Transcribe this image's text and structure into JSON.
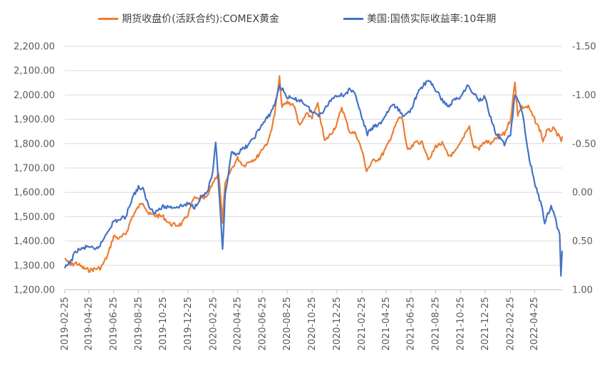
{
  "chart_data": {
    "type": "line",
    "title": "",
    "legend_position": "top",
    "grid": true,
    "colors": {
      "gold": "#ED7D31",
      "yield": "#4472C4",
      "grid": "#D9D9D9",
      "axis": "#BFBFBF",
      "text": "#595959"
    },
    "y_left": {
      "min": 1200,
      "max": 2200,
      "step": 100,
      "tick_labels": [
        "1,200.00",
        "1,300.00",
        "1,400.00",
        "1,500.00",
        "1,600.00",
        "1,700.00",
        "1,800.00",
        "1,900.00",
        "2,000.00",
        "2,100.00",
        "2,200.00"
      ]
    },
    "y_right": {
      "min": -1.5,
      "max": 1.0,
      "inverted": true,
      "tick_values": [
        -1.5,
        -1.0,
        -0.5,
        0.0,
        0.5,
        1.0
      ],
      "tick_labels": [
        "-1.50",
        "-1.00",
        "-0.50",
        "0.00",
        "0.50",
        "1.00"
      ]
    },
    "x_labels": [
      "2019-02-25",
      "2019-04-25",
      "2019-06-25",
      "2019-08-25",
      "2019-10-25",
      "2019-12-25",
      "2020-02-25",
      "2020-04-25",
      "2020-06-25",
      "2020-08-25",
      "2020-10-25",
      "2020-12-25",
      "2021-02-25",
      "2021-04-25",
      "2021-06-25",
      "2021-08-25",
      "2021-10-25",
      "2021-12-25",
      "2022-02-25",
      "2022-04-25"
    ],
    "series": [
      {
        "name": "期货收盘价(活跃合约):COMEX黄金",
        "axis": "left",
        "points": [
          [
            "2019-02-25",
            1330
          ],
          [
            "2019-03-10",
            1300
          ],
          [
            "2019-03-25",
            1310
          ],
          [
            "2019-04-10",
            1290
          ],
          [
            "2019-04-25",
            1280
          ],
          [
            "2019-05-10",
            1285
          ],
          [
            "2019-05-25",
            1290
          ],
          [
            "2019-06-10",
            1340
          ],
          [
            "2019-06-25",
            1420
          ],
          [
            "2019-07-10",
            1410
          ],
          [
            "2019-07-25",
            1430
          ],
          [
            "2019-08-10",
            1500
          ],
          [
            "2019-08-25",
            1540
          ],
          [
            "2019-09-05",
            1560
          ],
          [
            "2019-09-20",
            1510
          ],
          [
            "2019-10-05",
            1505
          ],
          [
            "2019-10-25",
            1500
          ],
          [
            "2019-11-10",
            1470
          ],
          [
            "2019-11-25",
            1465
          ],
          [
            "2019-12-10",
            1470
          ],
          [
            "2019-12-25",
            1510
          ],
          [
            "2020-01-08",
            1575
          ],
          [
            "2020-01-25",
            1570
          ],
          [
            "2020-02-10",
            1580
          ],
          [
            "2020-02-24",
            1640
          ],
          [
            "2020-03-09",
            1680
          ],
          [
            "2020-03-19",
            1480
          ],
          [
            "2020-03-25",
            1630
          ],
          [
            "2020-04-08",
            1690
          ],
          [
            "2020-04-25",
            1740
          ],
          [
            "2020-05-10",
            1710
          ],
          [
            "2020-05-25",
            1730
          ],
          [
            "2020-06-10",
            1740
          ],
          [
            "2020-06-25",
            1780
          ],
          [
            "2020-07-10",
            1810
          ],
          [
            "2020-07-25",
            1920
          ],
          [
            "2020-08-06",
            2070
          ],
          [
            "2020-08-12",
            1950
          ],
          [
            "2020-08-25",
            1970
          ],
          [
            "2020-09-10",
            1960
          ],
          [
            "2020-09-25",
            1870
          ],
          [
            "2020-10-10",
            1920
          ],
          [
            "2020-10-25",
            1910
          ],
          [
            "2020-11-08",
            1960
          ],
          [
            "2020-11-25",
            1810
          ],
          [
            "2020-12-10",
            1840
          ],
          [
            "2020-12-25",
            1880
          ],
          [
            "2021-01-06",
            1950
          ],
          [
            "2021-01-25",
            1850
          ],
          [
            "2021-02-10",
            1840
          ],
          [
            "2021-02-25",
            1770
          ],
          [
            "2021-03-08",
            1690
          ],
          [
            "2021-03-25",
            1730
          ],
          [
            "2021-04-10",
            1740
          ],
          [
            "2021-04-25",
            1780
          ],
          [
            "2021-05-10",
            1840
          ],
          [
            "2021-05-25",
            1900
          ],
          [
            "2021-06-03",
            1910
          ],
          [
            "2021-06-17",
            1770
          ],
          [
            "2021-06-25",
            1780
          ],
          [
            "2021-07-10",
            1810
          ],
          [
            "2021-07-25",
            1800
          ],
          [
            "2021-08-09",
            1730
          ],
          [
            "2021-08-25",
            1790
          ],
          [
            "2021-09-10",
            1800
          ],
          [
            "2021-09-25",
            1750
          ],
          [
            "2021-10-10",
            1760
          ],
          [
            "2021-10-25",
            1800
          ],
          [
            "2021-11-10",
            1860
          ],
          [
            "2021-11-16",
            1870
          ],
          [
            "2021-11-25",
            1790
          ],
          [
            "2021-12-10",
            1780
          ],
          [
            "2021-12-25",
            1810
          ],
          [
            "2022-01-10",
            1800
          ],
          [
            "2022-01-25",
            1830
          ],
          [
            "2022-02-10",
            1840
          ],
          [
            "2022-02-25",
            1900
          ],
          [
            "2022-03-08",
            2050
          ],
          [
            "2022-03-15",
            1920
          ],
          [
            "2022-03-25",
            1950
          ],
          [
            "2022-04-10",
            1950
          ],
          [
            "2022-04-25",
            1900
          ],
          [
            "2022-05-10",
            1850
          ],
          [
            "2022-05-16",
            1810
          ],
          [
            "2022-05-25",
            1850
          ],
          [
            "2022-06-10",
            1860
          ],
          [
            "2022-06-20",
            1840
          ],
          [
            "2022-06-30",
            1810
          ],
          [
            "2022-07-02",
            1830
          ]
        ]
      },
      {
        "name": "美国:国债实际收益率:10年期",
        "axis": "right",
        "points": [
          [
            "2019-02-25",
            0.78
          ],
          [
            "2019-03-10",
            0.72
          ],
          [
            "2019-03-25",
            0.6
          ],
          [
            "2019-04-10",
            0.58
          ],
          [
            "2019-04-25",
            0.55
          ],
          [
            "2019-05-10",
            0.6
          ],
          [
            "2019-05-25",
            0.53
          ],
          [
            "2019-06-10",
            0.4
          ],
          [
            "2019-06-25",
            0.3
          ],
          [
            "2019-07-10",
            0.28
          ],
          [
            "2019-07-25",
            0.25
          ],
          [
            "2019-08-10",
            0.05
          ],
          [
            "2019-08-25",
            -0.05
          ],
          [
            "2019-09-05",
            -0.03
          ],
          [
            "2019-09-20",
            0.15
          ],
          [
            "2019-10-05",
            0.2
          ],
          [
            "2019-10-25",
            0.15
          ],
          [
            "2019-11-10",
            0.15
          ],
          [
            "2019-11-25",
            0.15
          ],
          [
            "2019-12-10",
            0.14
          ],
          [
            "2019-12-25",
            0.12
          ],
          [
            "2020-01-10",
            0.15
          ],
          [
            "2020-01-25",
            0.05
          ],
          [
            "2020-02-10",
            0.0
          ],
          [
            "2020-02-24",
            -0.2
          ],
          [
            "2020-03-02",
            -0.5
          ],
          [
            "2020-03-09",
            -0.1
          ],
          [
            "2020-03-19",
            0.6
          ],
          [
            "2020-03-25",
            0.05
          ],
          [
            "2020-04-10",
            -0.4
          ],
          [
            "2020-04-25",
            -0.4
          ],
          [
            "2020-05-10",
            -0.45
          ],
          [
            "2020-05-25",
            -0.5
          ],
          [
            "2020-06-10",
            -0.6
          ],
          [
            "2020-06-25",
            -0.7
          ],
          [
            "2020-07-10",
            -0.78
          ],
          [
            "2020-07-25",
            -0.9
          ],
          [
            "2020-08-06",
            -1.1
          ],
          [
            "2020-08-25",
            -0.98
          ],
          [
            "2020-09-10",
            -0.95
          ],
          [
            "2020-09-25",
            -0.95
          ],
          [
            "2020-10-10",
            -0.9
          ],
          [
            "2020-10-25",
            -0.82
          ],
          [
            "2020-11-10",
            -0.8
          ],
          [
            "2020-11-25",
            -0.85
          ],
          [
            "2020-12-10",
            -0.95
          ],
          [
            "2020-12-25",
            -1.0
          ],
          [
            "2021-01-10",
            -1.0
          ],
          [
            "2021-01-25",
            -1.05
          ],
          [
            "2021-02-10",
            -1.0
          ],
          [
            "2021-02-25",
            -0.75
          ],
          [
            "2021-03-10",
            -0.6
          ],
          [
            "2021-03-25",
            -0.67
          ],
          [
            "2021-04-10",
            -0.7
          ],
          [
            "2021-04-25",
            -0.8
          ],
          [
            "2021-05-10",
            -0.9
          ],
          [
            "2021-05-25",
            -0.85
          ],
          [
            "2021-06-10",
            -0.78
          ],
          [
            "2021-06-25",
            -0.85
          ],
          [
            "2021-07-10",
            -1.0
          ],
          [
            "2021-07-25",
            -1.1
          ],
          [
            "2021-08-10",
            -1.15
          ],
          [
            "2021-08-25",
            -1.05
          ],
          [
            "2021-09-10",
            -0.95
          ],
          [
            "2021-09-25",
            -0.88
          ],
          [
            "2021-10-10",
            -0.95
          ],
          [
            "2021-10-25",
            -0.98
          ],
          [
            "2021-11-10",
            -1.1
          ],
          [
            "2021-11-25",
            -1.02
          ],
          [
            "2021-12-10",
            -0.95
          ],
          [
            "2021-12-25",
            -0.98
          ],
          [
            "2022-01-05",
            -0.8
          ],
          [
            "2022-01-20",
            -0.6
          ],
          [
            "2022-02-10",
            -0.5
          ],
          [
            "2022-02-25",
            -0.6
          ],
          [
            "2022-03-08",
            -1.0
          ],
          [
            "2022-03-25",
            -0.85
          ],
          [
            "2022-04-10",
            -0.4
          ],
          [
            "2022-04-25",
            -0.1
          ],
          [
            "2022-05-10",
            0.1
          ],
          [
            "2022-05-20",
            0.3
          ],
          [
            "2022-05-30",
            0.2
          ],
          [
            "2022-06-05",
            0.15
          ],
          [
            "2022-06-14",
            0.25
          ],
          [
            "2022-06-20",
            0.35
          ],
          [
            "2022-06-26",
            0.45
          ],
          [
            "2022-06-29",
            0.85
          ],
          [
            "2022-07-02",
            0.6
          ]
        ]
      }
    ]
  }
}
